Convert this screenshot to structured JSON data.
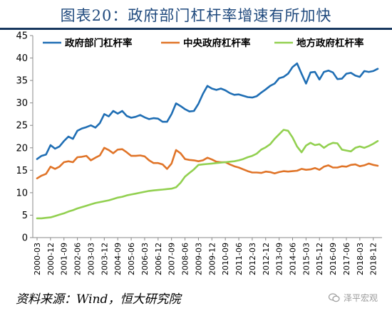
{
  "title": "图表20：政府部门杠杆率增速有所加快",
  "source": "资料来源：Wind，恒大研究院",
  "watermark": {
    "text": "泽平宏观",
    "icon": "wechat-icon"
  },
  "chart_data": {
    "type": "line",
    "title": "",
    "xlabel": "",
    "ylabel": "",
    "ylim": [
      0,
      45
    ],
    "yticks": [
      0,
      5,
      10,
      15,
      20,
      25,
      30,
      35,
      40,
      45
    ],
    "grid": false,
    "legend_position": "top",
    "x_tick_labels": [
      "2000-03",
      "2000-12",
      "2001-09",
      "2002-06",
      "2003-03",
      "2003-12",
      "2004-09",
      "2005-06",
      "2006-03",
      "2006-12",
      "2007-09",
      "2008-06",
      "2009-03",
      "2009-12",
      "2010-09",
      "2011-06",
      "2012-03",
      "2012-12",
      "2013-09",
      "2014-06",
      "2015-03",
      "2015-12",
      "2016-09",
      "2017-06",
      "2018-03",
      "2018-12"
    ],
    "x": [
      "2000-03",
      "2000-06",
      "2000-09",
      "2000-12",
      "2001-03",
      "2001-06",
      "2001-09",
      "2001-12",
      "2002-03",
      "2002-06",
      "2002-09",
      "2002-12",
      "2003-03",
      "2003-06",
      "2003-09",
      "2003-12",
      "2004-03",
      "2004-06",
      "2004-09",
      "2004-12",
      "2005-03",
      "2005-06",
      "2005-09",
      "2005-12",
      "2006-03",
      "2006-06",
      "2006-09",
      "2006-12",
      "2007-03",
      "2007-06",
      "2007-09",
      "2007-12",
      "2008-03",
      "2008-06",
      "2008-09",
      "2008-12",
      "2009-03",
      "2009-06",
      "2009-09",
      "2009-12",
      "2010-03",
      "2010-06",
      "2010-09",
      "2010-12",
      "2011-03",
      "2011-06",
      "2011-09",
      "2011-12",
      "2012-03",
      "2012-06",
      "2012-09",
      "2012-12",
      "2013-03",
      "2013-06",
      "2013-09",
      "2013-12",
      "2014-03",
      "2014-06",
      "2014-09",
      "2014-12",
      "2015-03",
      "2015-06",
      "2015-09",
      "2015-12",
      "2016-03",
      "2016-06",
      "2016-09",
      "2016-12",
      "2017-03",
      "2017-06",
      "2017-09",
      "2017-12",
      "2018-03",
      "2018-06",
      "2018-09",
      "2018-12",
      "2019-03"
    ],
    "series": [
      {
        "name": "政府部门杠杆率",
        "color": "#1f6eb4",
        "values": [
          17.5,
          18.2,
          18.5,
          20.6,
          19.8,
          20.3,
          21.5,
          22.5,
          22.0,
          23.8,
          24.3,
          24.6,
          25.0,
          24.5,
          25.5,
          27.5,
          27.0,
          28.2,
          27.6,
          28.2,
          27.1,
          26.7,
          26.9,
          27.3,
          26.8,
          26.4,
          26.6,
          26.5,
          25.8,
          25.8,
          27.5,
          29.9,
          29.3,
          28.6,
          28.1,
          28.2,
          29.8,
          32.0,
          33.8,
          33.2,
          32.9,
          33.2,
          32.8,
          32.2,
          31.8,
          31.9,
          31.6,
          31.3,
          31.2,
          31.5,
          32.3,
          33.0,
          33.8,
          34.3,
          35.5,
          35.8,
          36.5,
          38.0,
          38.8,
          36.5,
          34.3,
          36.8,
          36.9,
          35.2,
          36.9,
          37.2,
          36.8,
          35.3,
          35.4,
          36.5,
          36.7,
          36.1,
          35.8,
          37.1,
          36.9,
          37.1,
          37.6
        ]
      },
      {
        "name": "中央政府杠杆率",
        "color": "#e07428",
        "values": [
          13.2,
          13.8,
          14.2,
          15.8,
          15.3,
          15.8,
          16.8,
          17.0,
          16.8,
          17.9,
          18.0,
          18.2,
          17.2,
          17.8,
          18.3,
          20.0,
          19.5,
          18.8,
          19.6,
          19.7,
          19.0,
          18.2,
          18.2,
          18.3,
          18.1,
          17.2,
          16.6,
          16.6,
          16.3,
          15.3,
          16.5,
          19.5,
          18.8,
          17.5,
          17.3,
          17.2,
          17.0,
          17.2,
          17.8,
          17.4,
          16.9,
          16.8,
          16.8,
          16.3,
          15.9,
          15.6,
          15.2,
          14.8,
          14.5,
          14.5,
          14.4,
          14.7,
          14.6,
          14.3,
          14.6,
          14.8,
          14.7,
          14.8,
          14.9,
          15.3,
          15.1,
          15.2,
          15.5,
          15.1,
          15.8,
          16.1,
          15.6,
          15.6,
          15.9,
          15.8,
          16.2,
          16.3,
          15.9,
          16.1,
          16.5,
          16.2,
          16.0
        ]
      },
      {
        "name": "地方政府杠杆率",
        "color": "#92d050",
        "values": [
          4.3,
          4.3,
          4.4,
          4.5,
          4.8,
          5.1,
          5.4,
          5.8,
          6.1,
          6.5,
          6.8,
          7.1,
          7.4,
          7.7,
          7.9,
          8.1,
          8.3,
          8.6,
          8.9,
          9.1,
          9.4,
          9.6,
          9.8,
          10.0,
          10.2,
          10.4,
          10.5,
          10.6,
          10.7,
          10.8,
          10.9,
          11.2,
          12.2,
          13.6,
          14.4,
          15.2,
          16.2,
          16.3,
          16.4,
          16.5,
          16.6,
          16.7,
          16.8,
          16.9,
          17.0,
          17.2,
          17.5,
          17.9,
          18.2,
          18.7,
          19.6,
          20.1,
          20.8,
          22.0,
          23.0,
          24.0,
          23.8,
          22.3,
          20.3,
          19.0,
          20.5,
          21.1,
          20.6,
          20.8,
          20.0,
          20.7,
          21.1,
          21.0,
          19.6,
          19.4,
          19.2,
          20.0,
          20.3,
          20.0,
          20.4,
          20.9,
          21.5
        ]
      }
    ]
  }
}
